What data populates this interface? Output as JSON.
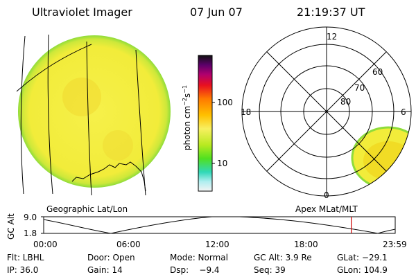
{
  "header": {
    "instrument": "Ultraviolet Imager",
    "date": "07 Jun 07",
    "time": "21:19:37 UT"
  },
  "colorbar": {
    "unit_label": "photon cm",
    "unit_sup1": "−2",
    "unit_mid": "s",
    "unit_sup2": "−1",
    "tick_100": "100",
    "tick_10": "10"
  },
  "left_panel": {
    "caption": "Geographic Lat/Lon"
  },
  "polar_plot": {
    "caption": "Apex MLat/MLT",
    "mlt_top": "12",
    "mlt_left": "18",
    "mlt_right": "6",
    "mlt_bottom": "0",
    "lat_60": "60",
    "lat_70": "70",
    "lat_80": "80"
  },
  "altitude_strip": {
    "ylabel": "GC Alt",
    "y_top": "9.0",
    "y_bottom": "1.8",
    "x_ticks": [
      "00:00",
      "06:00",
      "12:00",
      "18:00",
      "23:59"
    ],
    "current_time_fraction": 0.875,
    "colors": {
      "marker": "#cc0000"
    }
  },
  "footer": {
    "row1": {
      "filter": "Flt: LBHL",
      "door": "Door: Open",
      "mode": "Mode: Normal",
      "gc_alt": "GC Alt: 3.9 Re",
      "glat": "GLat: −29.1"
    },
    "row2": {
      "ip": "IP: 36.0",
      "gain": "Gain: 14",
      "dsp": "Dsp:    −9.4",
      "seq": "Seq: 39",
      "glon": "GLon: 104.9"
    }
  },
  "colors": {
    "image_fill": "#f4ee40",
    "image_rim": "#8fdc3a",
    "hot_spot": "#f0c000"
  }
}
